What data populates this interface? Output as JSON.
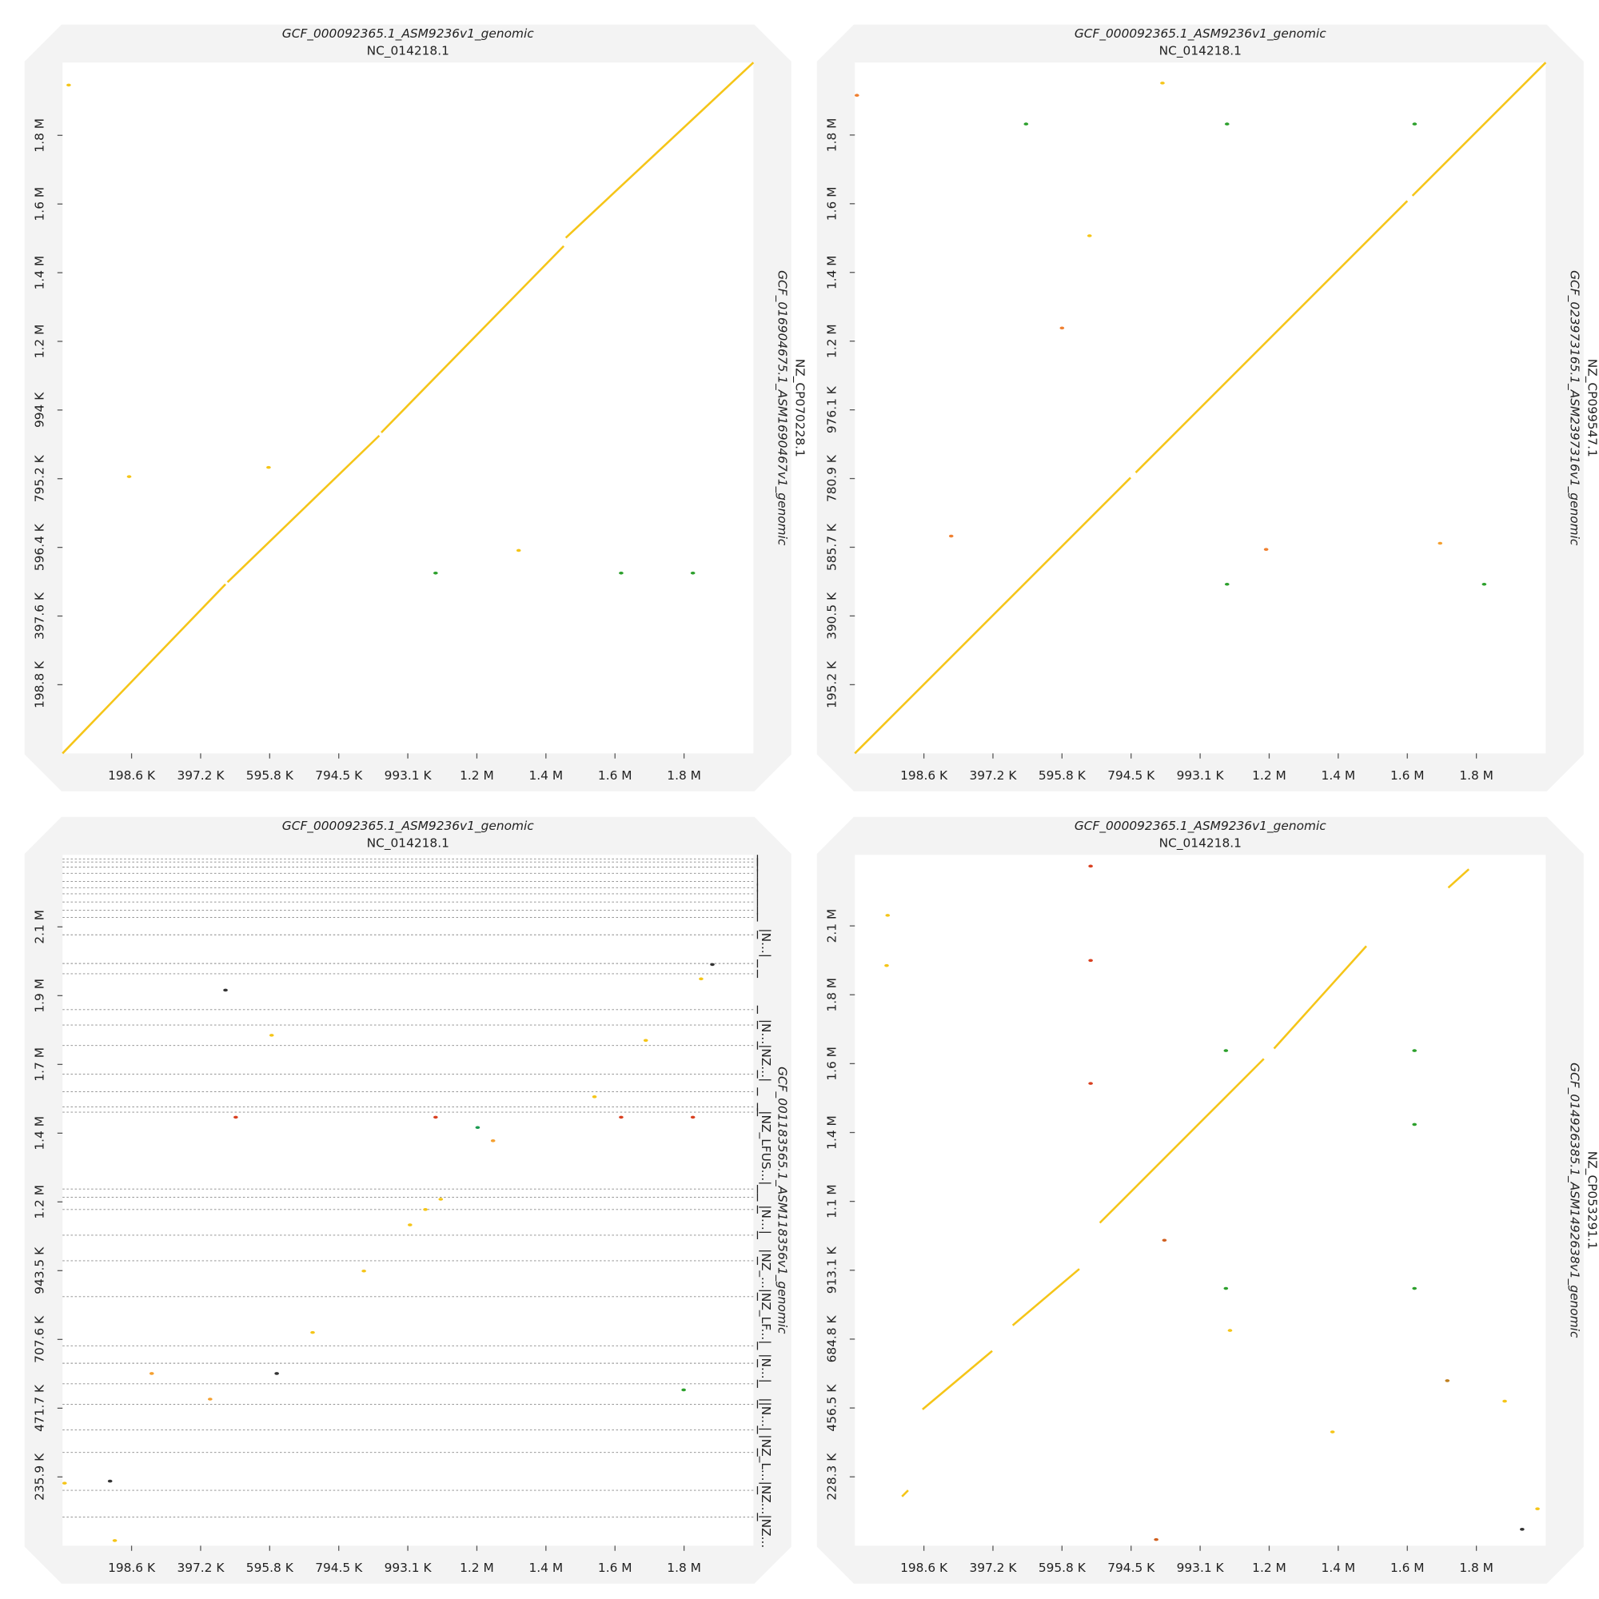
{
  "chart_data": [
    {
      "type": "dotplot",
      "title": "GCF_000092365.1_ASM9236v1_genomic",
      "subtitle": "NC_014218.1",
      "y_title": "GCF_016904675.1_ASM1690467v1_genomic",
      "y_subtitle": "NZ_CP070228.1",
      "xlim": [
        0,
        1987000
      ],
      "ylim": [
        0,
        2000000
      ],
      "xticks": [
        {
          "value": 198600,
          "label": "198.6 K"
        },
        {
          "value": 397200,
          "label": "397.2 K"
        },
        {
          "value": 595800,
          "label": "595.8 K"
        },
        {
          "value": 794500,
          "label": "794.5 K"
        },
        {
          "value": 993100,
          "label": "993.1 K"
        },
        {
          "value": 1191700,
          "label": "1.2 M"
        },
        {
          "value": 1390300,
          "label": "1.4 M"
        },
        {
          "value": 1589000,
          "label": "1.6 M"
        },
        {
          "value": 1787600,
          "label": "1.8 M"
        }
      ],
      "yticks": [
        {
          "value": 198800,
          "label": "198.8 K"
        },
        {
          "value": 397600,
          "label": "397.6 K"
        },
        {
          "value": 596400,
          "label": "596.4 K"
        },
        {
          "value": 795200,
          "label": "795.2 K"
        },
        {
          "value": 994000,
          "label": "994 K"
        },
        {
          "value": 1192800,
          "label": "1.2 M"
        },
        {
          "value": 1391600,
          "label": "1.4 M"
        },
        {
          "value": 1590400,
          "label": "1.6 M"
        },
        {
          "value": 1789200,
          "label": "1.8 M"
        }
      ],
      "segments": [
        {
          "x": [
            0,
            468700
          ],
          "y": [
            0,
            489600
          ],
          "color": "#f5c518"
        },
        {
          "x": [
            474600,
            911000
          ],
          "y": [
            495500,
            919900
          ],
          "color": "#f5c518"
        },
        {
          "x": [
            916900,
            1441600
          ],
          "y": [
            928800,
            1468800
          ],
          "color": "#f5c518"
        },
        {
          "x": [
            1447500,
            1987000
          ],
          "y": [
            1492600,
            2000000
          ],
          "color": "#f5c518"
        }
      ],
      "points": [
        {
          "x": 1073000,
          "y": 522000,
          "color": "#2ca02c"
        },
        {
          "x": 1606700,
          "y": 522000,
          "color": "#2ca02c"
        },
        {
          "x": 1813000,
          "y": 522000,
          "color": "#2ca02c"
        },
        {
          "x": 191600,
          "y": 801200,
          "color": "#f5c518"
        },
        {
          "x": 592600,
          "y": 827900,
          "color": "#f5c518"
        },
        {
          "x": 1311900,
          "y": 587500,
          "color": "#f5c518"
        },
        {
          "x": 17700,
          "y": 1934700,
          "color": "#f5c518"
        }
      ]
    },
    {
      "type": "dotplot",
      "title": "GCF_000092365.1_ASM9236v1_genomic",
      "subtitle": "NC_014218.1",
      "y_title": "GCF_023973165.1_ASM2397316v1_genomic",
      "y_subtitle": "NZ_CP099547.1",
      "xlim": [
        0,
        1987000
      ],
      "ylim": [
        0,
        1963000
      ],
      "xticks": [
        {
          "value": 198600,
          "label": "198.6 K"
        },
        {
          "value": 397200,
          "label": "397.2 K"
        },
        {
          "value": 595800,
          "label": "595.8 K"
        },
        {
          "value": 794500,
          "label": "794.5 K"
        },
        {
          "value": 993100,
          "label": "993.1 K"
        },
        {
          "value": 1191700,
          "label": "1.2 M"
        },
        {
          "value": 1390300,
          "label": "1.4 M"
        },
        {
          "value": 1589000,
          "label": "1.6 M"
        },
        {
          "value": 1787600,
          "label": "1.8 M"
        }
      ],
      "yticks": [
        {
          "value": 195200,
          "label": "195.2 K"
        },
        {
          "value": 390500,
          "label": "390.5 K"
        },
        {
          "value": 585700,
          "label": "585.7 K"
        },
        {
          "value": 780900,
          "label": "780.9 K"
        },
        {
          "value": 976100,
          "label": "976.1 K"
        },
        {
          "value": 1171400,
          "label": "1.2 M"
        },
        {
          "value": 1366600,
          "label": "1.4 M"
        },
        {
          "value": 1561800,
          "label": "1.6 M"
        },
        {
          "value": 1757000,
          "label": "1.8 M"
        }
      ],
      "segments": [
        {
          "x": [
            0,
            793000
          ],
          "y": [
            0,
            783400
          ],
          "color": "#f5c518"
        },
        {
          "x": [
            807800,
            1589000
          ],
          "y": [
            798000,
            1569800
          ],
          "color": "#f5c518"
        },
        {
          "x": [
            1603700,
            1987000
          ],
          "y": [
            1584400,
            1963000
          ],
          "color": "#f5c518"
        }
      ],
      "points": [
        {
          "x": 492300,
          "y": 1788300,
          "color": "#2ca02c"
        },
        {
          "x": 1070500,
          "y": 1788300,
          "color": "#2ca02c"
        },
        {
          "x": 1610000,
          "y": 1788300,
          "color": "#2ca02c"
        },
        {
          "x": 1070500,
          "y": 480600,
          "color": "#2ca02c"
        },
        {
          "x": 1810000,
          "y": 480600,
          "color": "#2ca02c"
        },
        {
          "x": 595800,
          "y": 1208700,
          "color": "#f08030"
        },
        {
          "x": 277100,
          "y": 617400,
          "color": "#f08030"
        },
        {
          "x": 1182900,
          "y": 579600,
          "color": "#f08030"
        },
        {
          "x": 1683300,
          "y": 597000,
          "color": "#f5a030"
        },
        {
          "x": 884700,
          "y": 1904700,
          "color": "#f5c518"
        },
        {
          "x": 5900,
          "y": 1869800,
          "color": "#f08030"
        },
        {
          "x": 675000,
          "y": 1470800,
          "color": "#f5c518"
        }
      ]
    },
    {
      "type": "dotplot",
      "title": "GCF_000092365.1_ASM9236v1_genomic",
      "subtitle": "NC_014218.1",
      "y_title": "GCF_001183565.1_ASM118356v1_genomic",
      "xlim": [
        0,
        1987000
      ],
      "ylim": [
        0,
        2370000
      ],
      "xticks": [
        {
          "value": 198600,
          "label": "198.6 K"
        },
        {
          "value": 397200,
          "label": "397.2 K"
        },
        {
          "value": 595800,
          "label": "595.8 K"
        },
        {
          "value": 794500,
          "label": "794.5 K"
        },
        {
          "value": 993100,
          "label": "993.1 K"
        },
        {
          "value": 1191700,
          "label": "1.2 M"
        },
        {
          "value": 1390300,
          "label": "1.4 M"
        },
        {
          "value": 1589000,
          "label": "1.6 M"
        },
        {
          "value": 1787600,
          "label": "1.8 M"
        }
      ],
      "yticks": [
        {
          "value": 235900,
          "label": "235.9 K"
        },
        {
          "value": 471700,
          "label": "471.7 K"
        },
        {
          "value": 707600,
          "label": "707.6 K"
        },
        {
          "value": 943500,
          "label": "943.5 K"
        },
        {
          "value": 1179400,
          "label": "1.2 M"
        },
        {
          "value": 1415200,
          "label": "1.4 M"
        },
        {
          "value": 1651100,
          "label": "1.7 M"
        },
        {
          "value": 1887000,
          "label": "1.9 M"
        },
        {
          "value": 2122900,
          "label": "2.1 M"
        }
      ],
      "contig_bounds": [
        98500,
        189900,
        320000,
        397300,
        485300,
        555600,
        625900,
        685700,
        854500,
        977500,
        1065400,
        1153400,
        1195600,
        1223700,
        1487400,
        1505000,
        1557700,
        1617500,
        1716000,
        1786300,
        1839000,
        1962100,
        1997300,
        2095700,
        2155500,
        2180100,
        2208200,
        2236400,
        2257400,
        2278600,
        2306700,
        2327800,
        2345400,
        2356000
      ],
      "contig_labels": [
        {
          "value": 2067100,
          "label": "|N...|"
        },
        {
          "value": 1698500,
          "label": "|N...|NZ...|"
        },
        {
          "value": 1364400,
          "label": "|NZ_LFUS...|"
        },
        {
          "value": 1118200,
          "label": "|N...|"
        },
        {
          "value": 854500,
          "label": "|NZ_...|NZ_LF...|"
        },
        {
          "value": 608300,
          "label": "|N...|"
        },
        {
          "value": 450100,
          "label": "||N...|"
        },
        {
          "value": 186400,
          "label": "|NZ_L...|NZ...|NZ..."
        }
      ],
      "segments": [],
      "points": [
        {
          "x": 498200,
          "y": 1469900,
          "color": "#d94020"
        },
        {
          "x": 1073000,
          "y": 1469900,
          "color": "#d94020"
        },
        {
          "x": 1606700,
          "y": 1469900,
          "color": "#d94020"
        },
        {
          "x": 1813000,
          "y": 1469900,
          "color": "#d94020"
        },
        {
          "x": 1193900,
          "y": 1434700,
          "color": "#1a9a50"
        },
        {
          "x": 1869000,
          "y": 1993800,
          "color": "#333333"
        },
        {
          "x": 468700,
          "y": 1905900,
          "color": "#333333"
        },
        {
          "x": 1836600,
          "y": 1944600,
          "color": "#f5c518"
        },
        {
          "x": 999400,
          "y": 1100600,
          "color": "#f5c518"
        },
        {
          "x": 1043600,
          "y": 1153400,
          "color": "#f5c518"
        },
        {
          "x": 1087800,
          "y": 1188500,
          "color": "#f5c518"
        },
        {
          "x": 866700,
          "y": 942400,
          "color": "#f5c518"
        },
        {
          "x": 1530000,
          "y": 1540100,
          "color": "#f5c518"
        },
        {
          "x": 1677500,
          "y": 1733500,
          "color": "#f5c518"
        },
        {
          "x": 601400,
          "y": 1751100,
          "color": "#f5c518"
        },
        {
          "x": 256500,
          "y": 590800,
          "color": "#f5a030"
        },
        {
          "x": 424500,
          "y": 502800,
          "color": "#f5a030"
        },
        {
          "x": 616100,
          "y": 590800,
          "color": "#333333"
        },
        {
          "x": 150300,
          "y": 17600,
          "color": "#f5c518"
        },
        {
          "x": 136700,
          "y": 221500,
          "color": "#333333"
        },
        {
          "x": 719300,
          "y": 731500,
          "color": "#f5c518"
        },
        {
          "x": 5900,
          "y": 214500,
          "color": "#f5c518"
        },
        {
          "x": 1238200,
          "y": 1389200,
          "color": "#f5a030"
        },
        {
          "x": 1786500,
          "y": 534500,
          "color": "#2ca02c"
        }
      ]
    },
    {
      "type": "dotplot",
      "title": "GCF_000092365.1_ASM9236v1_genomic",
      "subtitle": "NC_014218.1",
      "y_title": "GCF_014926385.1_ASM1492638v1_genomic",
      "y_subtitle": "NZ_CP053291.1",
      "xlim": [
        0,
        1987000
      ],
      "ylim": [
        0,
        2290000
      ],
      "xticks": [
        {
          "value": 198600,
          "label": "198.6 K"
        },
        {
          "value": 397200,
          "label": "397.2 K"
        },
        {
          "value": 595800,
          "label": "595.8 K"
        },
        {
          "value": 794500,
          "label": "794.5 K"
        },
        {
          "value": 993100,
          "label": "993.1 K"
        },
        {
          "value": 1191700,
          "label": "1.2 M"
        },
        {
          "value": 1390300,
          "label": "1.4 M"
        },
        {
          "value": 1589000,
          "label": "1.6 M"
        },
        {
          "value": 1787600,
          "label": "1.8 M"
        }
      ],
      "yticks": [
        {
          "value": 228300,
          "label": "228.3 K"
        },
        {
          "value": 456500,
          "label": "456.5 K"
        },
        {
          "value": 684800,
          "label": "684.8 K"
        },
        {
          "value": 913100,
          "label": "913.1 K"
        },
        {
          "value": 1141400,
          "label": "1.1 M"
        },
        {
          "value": 1369600,
          "label": "1.4 M"
        },
        {
          "value": 1597900,
          "label": "1.6 M"
        },
        {
          "value": 1826200,
          "label": "1.8 M"
        },
        {
          "value": 2054500,
          "label": "2.1 M"
        }
      ],
      "segments": [
        {
          "x": [
            135600,
            153300
          ],
          "y": [
            163100,
            183500
          ],
          "color": "#f5c518"
        },
        {
          "x": [
            194600,
            395000
          ],
          "y": [
            451800,
            645500
          ],
          "color": "#f5c518"
        },
        {
          "x": [
            454000,
            645600
          ],
          "y": [
            730400,
            917300
          ],
          "color": "#f5c518"
        },
        {
          "x": [
            704600,
            1176300
          ],
          "y": [
            1070200,
            1613900
          ],
          "color": "#f5c518"
        },
        {
          "x": [
            1205700,
            1471100
          ],
          "y": [
            1647900,
            1987600
          ],
          "color": "#f5c518"
        },
        {
          "x": [
            1706900,
            1765900
          ],
          "y": [
            2181200,
            2242400
          ],
          "color": "#f5c518"
        }
      ],
      "points": [
        {
          "x": 1067200,
          "y": 1641100,
          "color": "#2ca02c"
        },
        {
          "x": 1609600,
          "y": 1641100,
          "color": "#2ca02c"
        },
        {
          "x": 1609600,
          "y": 1396400,
          "color": "#2ca02c"
        },
        {
          "x": 1067200,
          "y": 852800,
          "color": "#2ca02c"
        },
        {
          "x": 1609600,
          "y": 852800,
          "color": "#2ca02c"
        },
        {
          "x": 678100,
          "y": 1940000,
          "color": "#d94020"
        },
        {
          "x": 678100,
          "y": 1532300,
          "color": "#d94020"
        },
        {
          "x": 890300,
          "y": 1012500,
          "color": "#d06020"
        },
        {
          "x": 678100,
          "y": 2252600,
          "color": "#d94020"
        },
        {
          "x": 1704000,
          "y": 547000,
          "color": "#c08020"
        },
        {
          "x": 866700,
          "y": 20400,
          "color": "#d06020"
        },
        {
          "x": 94300,
          "y": 2089500,
          "color": "#f5c518"
        },
        {
          "x": 91400,
          "y": 1923100,
          "color": "#f5c518"
        },
        {
          "x": 1373800,
          "y": 377100,
          "color": "#f5c518"
        },
        {
          "x": 1079000,
          "y": 713500,
          "color": "#f5c518"
        },
        {
          "x": 1963400,
          "y": 122300,
          "color": "#f5c518"
        },
        {
          "x": 1869100,
          "y": 479100,
          "color": "#f5c518"
        },
        {
          "x": 1919200,
          "y": 54400,
          "color": "#333333"
        }
      ]
    }
  ]
}
